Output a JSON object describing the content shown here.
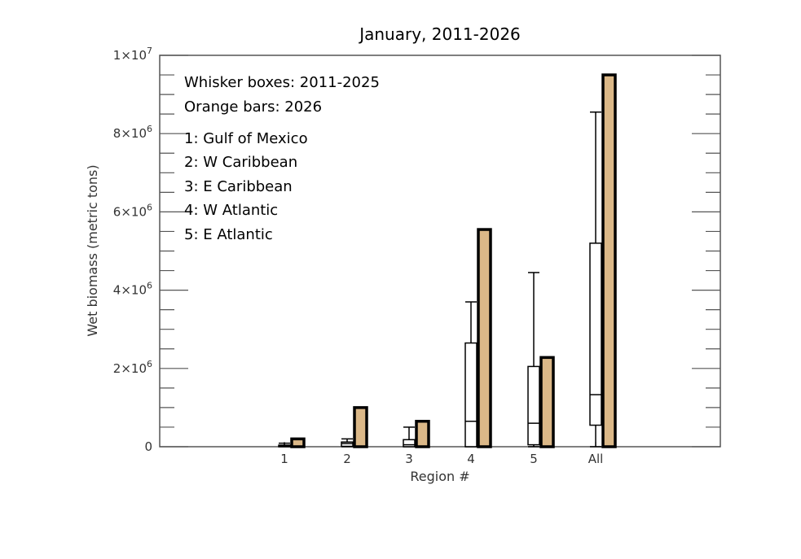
{
  "chart_data": {
    "type": "box-bar",
    "title": "January, 2011-2026",
    "xlabel": "Region #",
    "ylabel": "Wet biomass (metric tons)",
    "ylim": [
      0,
      10000000
    ],
    "y_tick_values": [
      0,
      2000000,
      4000000,
      6000000,
      8000000,
      10000000
    ],
    "y_tick_labels": [
      {
        "text": "0",
        "mant": "",
        "exp": ""
      },
      {
        "text": "",
        "mant": "2×10",
        "exp": "6"
      },
      {
        "text": "",
        "mant": "4×10",
        "exp": "6"
      },
      {
        "text": "",
        "mant": "6×10",
        "exp": "6"
      },
      {
        "text": "",
        "mant": "8×10",
        "exp": "6"
      },
      {
        "text": "",
        "mant": "1×10",
        "exp": "7"
      }
    ],
    "categories": [
      "1",
      "2",
      "3",
      "4",
      "5",
      "All"
    ],
    "boxes": [
      {
        "min": 0,
        "q1": 0,
        "median": 20000,
        "q3": 40000,
        "max": 90000
      },
      {
        "min": 0,
        "q1": 10000,
        "median": 80000,
        "q3": 120000,
        "max": 200000
      },
      {
        "min": 0,
        "q1": 0,
        "median": 50000,
        "q3": 180000,
        "max": 500000
      },
      {
        "min": 0,
        "q1": 0,
        "median": 650000,
        "q3": 2650000,
        "max": 3700000
      },
      {
        "min": 0,
        "q1": 50000,
        "median": 600000,
        "q3": 2050000,
        "max": 4450000
      },
      {
        "min": 0,
        "q1": 550000,
        "median": 1330000,
        "q3": 5200000,
        "max": 8550000
      }
    ],
    "bars_2026": [
      200000,
      1000000,
      650000,
      5550000,
      2280000,
      9500000
    ],
    "colors": {
      "bar_fill": "#dbb888",
      "box_fill": "#ffffff",
      "stroke": "#000000"
    },
    "legend": {
      "lines": [
        "Whisker boxes: 2011-2025",
        "Orange bars: 2026"
      ],
      "regions": [
        "1: Gulf of Mexico",
        "2: W Caribbean",
        "3: E Caribbean",
        "4: W Atlantic",
        "5: E Atlantic"
      ]
    }
  }
}
